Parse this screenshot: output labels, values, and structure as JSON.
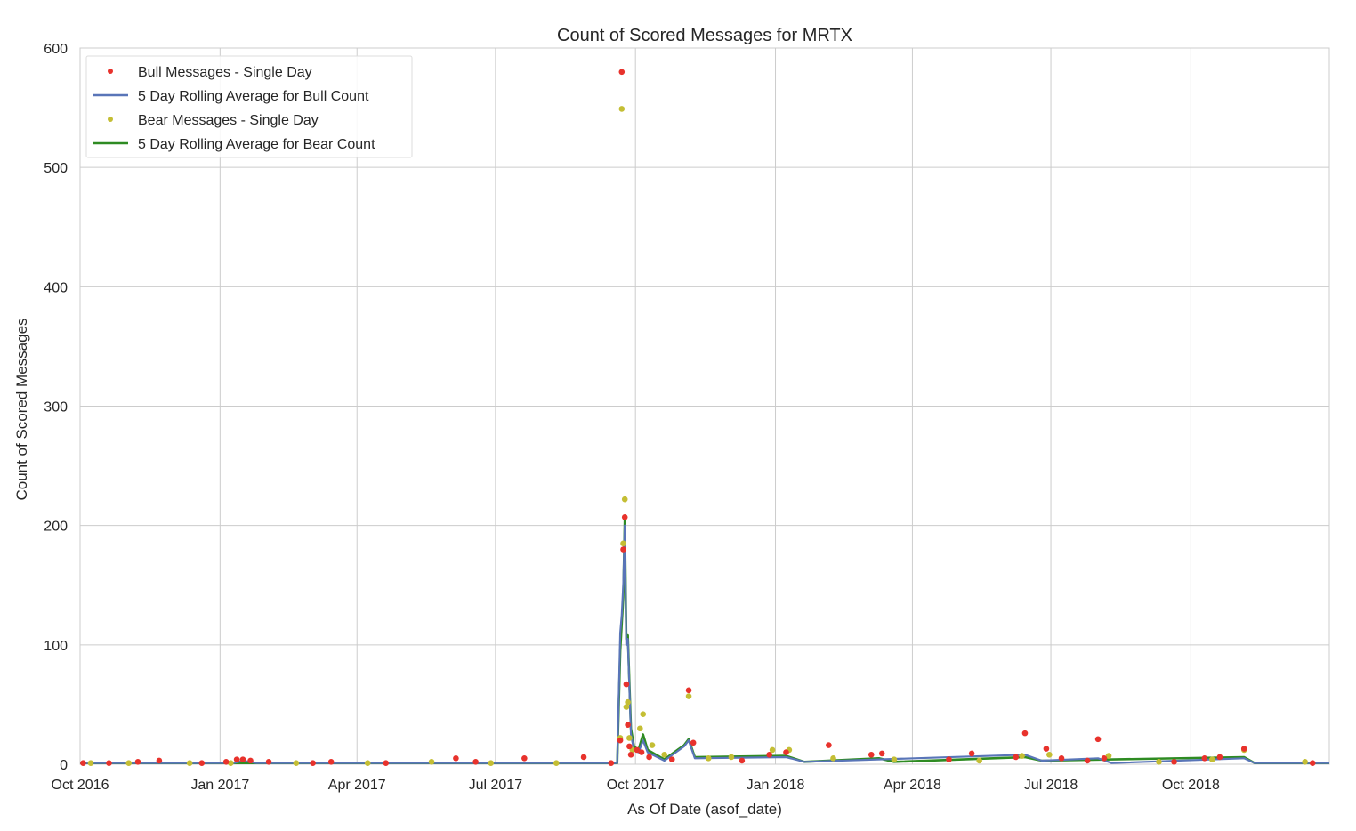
{
  "chart_data": {
    "type": "line",
    "title": "Count of Scored Messages for MRTX",
    "xlabel": "As Of Date (asof_date)",
    "ylabel": "Count of Scored Messages",
    "xlim": [
      "2016-10-01",
      "2018-12-31"
    ],
    "ylim": [
      0,
      600
    ],
    "yticks": [
      0,
      100,
      200,
      300,
      400,
      500,
      600
    ],
    "xticks": [
      {
        "date": "2016-10-01",
        "label": "Oct 2016"
      },
      {
        "date": "2017-01-01",
        "label": "Jan 2017"
      },
      {
        "date": "2017-04-01",
        "label": "Apr 2017"
      },
      {
        "date": "2017-07-01",
        "label": "Jul 2017"
      },
      {
        "date": "2017-10-01",
        "label": "Oct 2017"
      },
      {
        "date": "2018-01-01",
        "label": "Jan 2018"
      },
      {
        "date": "2018-04-01",
        "label": "Apr 2018"
      },
      {
        "date": "2018-07-01",
        "label": "Jul 2018"
      },
      {
        "date": "2018-10-01",
        "label": "Oct 2018"
      }
    ],
    "grid": true,
    "legend": {
      "position": "top-left",
      "entries": [
        "Bull Messages - Single Day",
        "5 Day Rolling Average for Bull Count",
        "Bear Messages - Single Day",
        "5 Day Rolling Average for Bear Count"
      ]
    },
    "colors": {
      "bull_points": "#e8322c",
      "bull_avg": "#5975b8",
      "bear_points": "#c4be34",
      "bear_avg": "#2e8b22",
      "grid": "#cccccc",
      "frame": "#cccccc"
    },
    "series": [
      {
        "name": "Bull Messages - Single Day",
        "style": "points",
        "points": [
          {
            "x": "2016-10-03",
            "y": 1
          },
          {
            "x": "2016-10-20",
            "y": 1
          },
          {
            "x": "2016-11-08",
            "y": 2
          },
          {
            "x": "2016-11-22",
            "y": 3
          },
          {
            "x": "2016-12-20",
            "y": 1
          },
          {
            "x": "2017-01-05",
            "y": 2
          },
          {
            "x": "2017-01-12",
            "y": 4
          },
          {
            "x": "2017-01-16",
            "y": 4
          },
          {
            "x": "2017-01-21",
            "y": 3
          },
          {
            "x": "2017-02-02",
            "y": 2
          },
          {
            "x": "2017-03-03",
            "y": 1
          },
          {
            "x": "2017-03-15",
            "y": 2
          },
          {
            "x": "2017-04-20",
            "y": 1
          },
          {
            "x": "2017-06-05",
            "y": 5
          },
          {
            "x": "2017-06-18",
            "y": 2
          },
          {
            "x": "2017-07-20",
            "y": 5
          },
          {
            "x": "2017-08-28",
            "y": 6
          },
          {
            "x": "2017-09-15",
            "y": 1
          },
          {
            "x": "2017-09-21",
            "y": 20
          },
          {
            "x": "2017-09-22",
            "y": 580
          },
          {
            "x": "2017-09-23",
            "y": 180
          },
          {
            "x": "2017-09-24",
            "y": 207
          },
          {
            "x": "2017-09-25",
            "y": 67
          },
          {
            "x": "2017-09-26",
            "y": 33
          },
          {
            "x": "2017-09-27",
            "y": 15
          },
          {
            "x": "2017-09-28",
            "y": 8
          },
          {
            "x": "2017-10-02",
            "y": 12
          },
          {
            "x": "2017-10-05",
            "y": 10
          },
          {
            "x": "2017-10-10",
            "y": 6
          },
          {
            "x": "2017-10-25",
            "y": 4
          },
          {
            "x": "2017-11-05",
            "y": 62
          },
          {
            "x": "2017-11-08",
            "y": 18
          },
          {
            "x": "2017-12-10",
            "y": 3
          },
          {
            "x": "2017-12-28",
            "y": 8
          },
          {
            "x": "2018-01-08",
            "y": 10
          },
          {
            "x": "2018-02-05",
            "y": 16
          },
          {
            "x": "2018-03-05",
            "y": 8
          },
          {
            "x": "2018-03-12",
            "y": 9
          },
          {
            "x": "2018-04-25",
            "y": 4
          },
          {
            "x": "2018-05-10",
            "y": 9
          },
          {
            "x": "2018-06-08",
            "y": 6
          },
          {
            "x": "2018-06-14",
            "y": 26
          },
          {
            "x": "2018-06-28",
            "y": 13
          },
          {
            "x": "2018-07-08",
            "y": 5
          },
          {
            "x": "2018-07-25",
            "y": 3
          },
          {
            "x": "2018-08-01",
            "y": 21
          },
          {
            "x": "2018-08-05",
            "y": 5
          },
          {
            "x": "2018-09-20",
            "y": 2
          },
          {
            "x": "2018-10-10",
            "y": 5
          },
          {
            "x": "2018-10-20",
            "y": 6
          },
          {
            "x": "2018-11-05",
            "y": 13
          },
          {
            "x": "2018-12-20",
            "y": 1
          }
        ]
      },
      {
        "name": "5 Day Rolling Average for Bull Count",
        "style": "line",
        "points": [
          {
            "x": "2016-10-01",
            "y": 1
          },
          {
            "x": "2017-01-10",
            "y": 1
          },
          {
            "x": "2017-01-16",
            "y": 3
          },
          {
            "x": "2017-01-25",
            "y": 1
          },
          {
            "x": "2017-09-19",
            "y": 1
          },
          {
            "x": "2017-09-21",
            "y": 110
          },
          {
            "x": "2017-09-22",
            "y": 125
          },
          {
            "x": "2017-09-23",
            "y": 150
          },
          {
            "x": "2017-09-24",
            "y": 200
          },
          {
            "x": "2017-09-25",
            "y": 100
          },
          {
            "x": "2017-09-26",
            "y": 105
          },
          {
            "x": "2017-09-28",
            "y": 25
          },
          {
            "x": "2017-09-30",
            "y": 12
          },
          {
            "x": "2017-10-03",
            "y": 10
          },
          {
            "x": "2017-10-06",
            "y": 20
          },
          {
            "x": "2017-10-09",
            "y": 10
          },
          {
            "x": "2017-10-20",
            "y": 3
          },
          {
            "x": "2017-11-02",
            "y": 15
          },
          {
            "x": "2017-11-05",
            "y": 20
          },
          {
            "x": "2017-11-09",
            "y": 5
          },
          {
            "x": "2018-01-08",
            "y": 6
          },
          {
            "x": "2018-01-20",
            "y": 2
          },
          {
            "x": "2018-06-14",
            "y": 8
          },
          {
            "x": "2018-06-25",
            "y": 3
          },
          {
            "x": "2018-08-01",
            "y": 5
          },
          {
            "x": "2018-08-10",
            "y": 1
          },
          {
            "x": "2018-11-05",
            "y": 5
          },
          {
            "x": "2018-11-12",
            "y": 1
          },
          {
            "x": "2018-12-31",
            "y": 1
          }
        ]
      },
      {
        "name": "Bear Messages - Single Day",
        "style": "points",
        "points": [
          {
            "x": "2016-10-08",
            "y": 1
          },
          {
            "x": "2016-11-02",
            "y": 1
          },
          {
            "x": "2016-12-12",
            "y": 1
          },
          {
            "x": "2017-01-08",
            "y": 1
          },
          {
            "x": "2017-02-20",
            "y": 1
          },
          {
            "x": "2017-04-08",
            "y": 1
          },
          {
            "x": "2017-05-20",
            "y": 2
          },
          {
            "x": "2017-06-28",
            "y": 1
          },
          {
            "x": "2017-08-10",
            "y": 1
          },
          {
            "x": "2017-09-21",
            "y": 22
          },
          {
            "x": "2017-09-22",
            "y": 549
          },
          {
            "x": "2017-09-23",
            "y": 185
          },
          {
            "x": "2017-09-24",
            "y": 222
          },
          {
            "x": "2017-09-25",
            "y": 48
          },
          {
            "x": "2017-09-26",
            "y": 52
          },
          {
            "x": "2017-09-27",
            "y": 22
          },
          {
            "x": "2017-09-29",
            "y": 12
          },
          {
            "x": "2017-10-04",
            "y": 30
          },
          {
            "x": "2017-10-06",
            "y": 42
          },
          {
            "x": "2017-10-12",
            "y": 16
          },
          {
            "x": "2017-10-20",
            "y": 8
          },
          {
            "x": "2017-11-05",
            "y": 57
          },
          {
            "x": "2017-11-18",
            "y": 5
          },
          {
            "x": "2017-12-03",
            "y": 6
          },
          {
            "x": "2017-12-30",
            "y": 12
          },
          {
            "x": "2018-01-10",
            "y": 12
          },
          {
            "x": "2018-02-08",
            "y": 5
          },
          {
            "x": "2018-03-20",
            "y": 4
          },
          {
            "x": "2018-05-15",
            "y": 3
          },
          {
            "x": "2018-06-12",
            "y": 7
          },
          {
            "x": "2018-06-30",
            "y": 8
          },
          {
            "x": "2018-08-08",
            "y": 7
          },
          {
            "x": "2018-09-10",
            "y": 2
          },
          {
            "x": "2018-10-15",
            "y": 4
          },
          {
            "x": "2018-11-05",
            "y": 12
          },
          {
            "x": "2018-12-15",
            "y": 2
          }
        ]
      },
      {
        "name": "5 Day Rolling Average for Bear Count",
        "style": "line",
        "points": [
          {
            "x": "2016-10-01",
            "y": 1
          },
          {
            "x": "2017-09-19",
            "y": 1
          },
          {
            "x": "2017-09-21",
            "y": 95
          },
          {
            "x": "2017-09-22",
            "y": 118
          },
          {
            "x": "2017-09-23",
            "y": 140
          },
          {
            "x": "2017-09-24",
            "y": 205
          },
          {
            "x": "2017-09-25",
            "y": 105
          },
          {
            "x": "2017-09-26",
            "y": 108
          },
          {
            "x": "2017-09-28",
            "y": 30
          },
          {
            "x": "2017-09-30",
            "y": 15
          },
          {
            "x": "2017-10-03",
            "y": 12
          },
          {
            "x": "2017-10-06",
            "y": 25
          },
          {
            "x": "2017-10-09",
            "y": 12
          },
          {
            "x": "2017-10-20",
            "y": 4
          },
          {
            "x": "2017-11-02",
            "y": 16
          },
          {
            "x": "2017-11-05",
            "y": 21
          },
          {
            "x": "2017-11-09",
            "y": 6
          },
          {
            "x": "2018-01-08",
            "y": 7
          },
          {
            "x": "2018-01-20",
            "y": 2
          },
          {
            "x": "2018-03-10",
            "y": 5
          },
          {
            "x": "2018-03-20",
            "y": 2
          },
          {
            "x": "2018-06-14",
            "y": 6
          },
          {
            "x": "2018-06-25",
            "y": 3
          },
          {
            "x": "2018-11-05",
            "y": 6
          },
          {
            "x": "2018-11-12",
            "y": 1
          },
          {
            "x": "2018-12-31",
            "y": 1
          }
        ]
      }
    ]
  }
}
